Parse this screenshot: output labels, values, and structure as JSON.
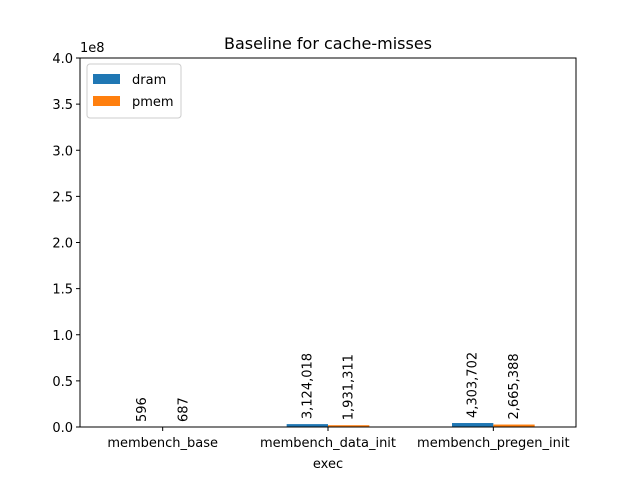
{
  "chart_data": {
    "type": "bar",
    "title": "Baseline for cache-misses",
    "xlabel": "exec",
    "ylabel": "",
    "y_offset_label": "1e8",
    "y_scale": 100000000,
    "ylim": [
      0,
      400000000
    ],
    "yticks": [
      {
        "value": 0,
        "label": "0.0"
      },
      {
        "value": 50000000,
        "label": "0.5"
      },
      {
        "value": 100000000,
        "label": "1.0"
      },
      {
        "value": 150000000,
        "label": "1.5"
      },
      {
        "value": 200000000,
        "label": "2.0"
      },
      {
        "value": 250000000,
        "label": "2.5"
      },
      {
        "value": 300000000,
        "label": "3.0"
      },
      {
        "value": 350000000,
        "label": "3.5"
      },
      {
        "value": 400000000,
        "label": "4.0"
      }
    ],
    "categories": [
      "membench_base",
      "membench_data_init",
      "membench_pregen_init"
    ],
    "series": [
      {
        "name": "dram",
        "color": "#1f77b4",
        "values": [
          596,
          3124018,
          4303702
        ],
        "labels": [
          "596",
          "3,124,018",
          "4,303,702"
        ]
      },
      {
        "name": "pmem",
        "color": "#ff7f0e",
        "values": [
          687,
          1931311,
          2665388
        ],
        "labels": [
          "687",
          "1,931,311",
          "2,665,388"
        ]
      }
    ],
    "legend_position": "top-left",
    "grid": false
  }
}
